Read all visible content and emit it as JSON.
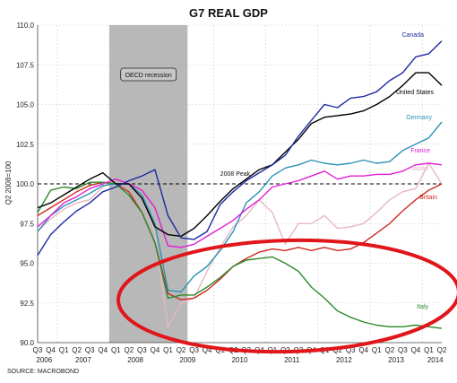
{
  "chart_data": {
    "type": "line",
    "title": "G7 REAL GDP",
    "ylabel": "Q2 2008=100",
    "source": "SOURCE: MACROBOND",
    "ylim": [
      90.0,
      110.0
    ],
    "yticks": [
      "110.0",
      "107.5",
      "105.0",
      "102.5",
      "100.0",
      "97.5",
      "95.0",
      "92.5",
      "90.0"
    ],
    "quarter_labels": [
      "Q3",
      "Q4",
      "Q1",
      "Q2",
      "Q3",
      "Q4",
      "Q1",
      "Q2",
      "Q3",
      "Q4",
      "Q1",
      "Q2",
      "Q3",
      "Q4",
      "Q1",
      "Q2",
      "Q3",
      "Q4",
      "Q1",
      "Q2",
      "Q3",
      "Q4",
      "Q1",
      "Q2",
      "Q3",
      "Q4",
      "Q1",
      "Q2",
      "Q3",
      "Q4",
      "Q1",
      "Q2"
    ],
    "year_labels": [
      "2006",
      "2007",
      "2008",
      "2009",
      "2010",
      "2011",
      "2012",
      "2013",
      "2014"
    ],
    "grid": true,
    "recession": {
      "label": "OECD recession",
      "from": "Q1 2008",
      "to": "Q2 2009",
      "color": "#b8b8b8"
    },
    "reference_line": {
      "value": 100.0,
      "label": "2008 Peak"
    },
    "series": [
      {
        "name": "Canada",
        "color": "#1c2aa0",
        "values": [
          95.5,
          96.8,
          97.6,
          98.3,
          98.8,
          99.5,
          99.8,
          100.2,
          100.5,
          100.9,
          98.0,
          96.6,
          96.5,
          97.0,
          98.7,
          99.5,
          100.2,
          100.7,
          101.2,
          101.8,
          103.0,
          104.0,
          105.0,
          104.8,
          105.4,
          105.5,
          105.8,
          106.5,
          107.0,
          108.0,
          108.2,
          109.0
        ]
      },
      {
        "name": "United States",
        "color": "#000000",
        "values": [
          98.5,
          98.8,
          99.3,
          99.8,
          100.3,
          100.7,
          100.0,
          100.0,
          99.1,
          97.3,
          96.8,
          96.7,
          97.2,
          98.0,
          98.9,
          99.7,
          100.3,
          100.9,
          101.2,
          102.0,
          102.8,
          103.8,
          104.2,
          104.3,
          104.4,
          104.6,
          105.0,
          105.5,
          106.2,
          107.0,
          107.0,
          106.2
        ]
      },
      {
        "name": "Germany",
        "color": "#2a93b5",
        "values": [
          97.0,
          98.0,
          98.6,
          99.0,
          99.4,
          99.9,
          100.0,
          100.0,
          99.3,
          97.5,
          93.3,
          93.2,
          94.2,
          94.8,
          95.8,
          97.0,
          98.8,
          99.5,
          100.5,
          101.0,
          101.2,
          101.5,
          101.3,
          101.2,
          101.3,
          101.5,
          101.3,
          101.4,
          102.1,
          102.5,
          102.9,
          103.9
        ]
      },
      {
        "name": "France",
        "color": "#e01fd5",
        "values": [
          97.3,
          98.0,
          98.8,
          99.2,
          99.7,
          100.0,
          100.3,
          100.0,
          99.6,
          98.5,
          96.1,
          96.0,
          96.2,
          96.7,
          97.2,
          97.7,
          98.4,
          99.0,
          99.8,
          100.0,
          100.2,
          100.5,
          100.8,
          100.3,
          100.5,
          100.5,
          100.6,
          100.6,
          100.8,
          101.2,
          101.3,
          101.2
        ]
      },
      {
        "name": "Japan",
        "color": "#e7b8c0",
        "values": [
          97.0,
          97.8,
          98.4,
          98.8,
          99.0,
          99.8,
          100.3,
          100.0,
          99.2,
          96.8,
          91.0,
          92.5,
          92.8,
          94.5,
          96.0,
          97.3,
          98.0,
          99.0,
          98.2,
          96.2,
          97.5,
          97.5,
          98.0,
          97.2,
          97.3,
          97.5,
          98.2,
          99.0,
          99.5,
          99.7,
          101.3,
          100.0
        ]
      },
      {
        "name": "Britain",
        "color": "#cc2a20",
        "values": [
          98.0,
          98.5,
          99.0,
          99.5,
          99.9,
          100.1,
          100.0,
          99.5,
          98.2,
          96.3,
          93.1,
          92.7,
          92.8,
          93.3,
          94.0,
          94.8,
          95.3,
          95.7,
          95.9,
          95.8,
          96.0,
          95.8,
          96.0,
          95.8,
          95.9,
          96.3,
          96.9,
          97.5,
          98.3,
          99.0,
          99.6,
          100.0
        ]
      },
      {
        "name": "Italy",
        "color": "#2a8a2a",
        "values": [
          98.2,
          99.6,
          99.8,
          99.7,
          100.1,
          100.1,
          100.0,
          99.3,
          98.2,
          96.3,
          92.8,
          93.0,
          93.0,
          93.5,
          94.1,
          94.8,
          95.2,
          95.3,
          95.4,
          95.0,
          94.5,
          93.5,
          92.8,
          92.0,
          91.6,
          91.3,
          91.1,
          91.0,
          91.0,
          91.1,
          91.0,
          90.9
        ]
      }
    ]
  },
  "annotation": {
    "shape": "ellipse",
    "color": "#e0161b"
  }
}
